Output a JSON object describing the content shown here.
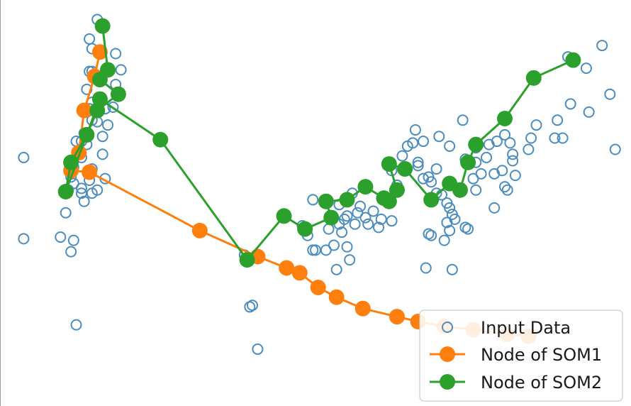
{
  "chart_data": {
    "type": "scatter",
    "xlim": [
      -1.2,
      1.2
    ],
    "ylim": [
      -1.4,
      1.1
    ],
    "grid": false,
    "legend_position": "lower-right",
    "legend": {
      "input_label": "Input Data",
      "som1_label": "Node of SOM1",
      "som2_label": "Node of SOM2"
    },
    "colors": {
      "input": "#4c8dbf",
      "som1": "#ff7f0e",
      "som2": "#2ca02c",
      "axis": "#9a9a9a"
    },
    "series": [
      {
        "name": "Input Data",
        "kind": "points",
        "points": [
          [
            -0.83,
            0.98
          ],
          [
            -0.86,
            0.86
          ],
          [
            -0.85,
            0.8
          ],
          [
            -0.86,
            0.66
          ],
          [
            -0.85,
            0.66
          ],
          [
            -0.79,
            0.66
          ],
          [
            -0.74,
            0.67
          ],
          [
            -0.76,
            0.58
          ],
          [
            -0.87,
            0.55
          ],
          [
            -0.85,
            0.47
          ],
          [
            -0.86,
            0.43
          ],
          [
            -0.8,
            0.43
          ],
          [
            -0.77,
            0.44
          ],
          [
            -0.85,
            0.36
          ],
          [
            -0.83,
            0.35
          ],
          [
            -0.79,
            0.33
          ],
          [
            -0.88,
            0.28
          ],
          [
            -0.87,
            0.26
          ],
          [
            -0.81,
            0.26
          ],
          [
            -0.91,
            0.23
          ],
          [
            -0.89,
            0.23
          ],
          [
            -0.87,
            0.21
          ],
          [
            -0.9,
            0.17
          ],
          [
            -0.89,
            0.13
          ],
          [
            -0.81,
            0.15
          ],
          [
            -0.92,
            0.07
          ],
          [
            -0.85,
            0.06
          ],
          [
            -0.93,
            0.01
          ],
          [
            -0.8,
            0.0
          ],
          [
            -0.86,
            -0.01
          ],
          [
            -0.92,
            -0.03
          ],
          [
            -0.89,
            -0.06
          ],
          [
            -0.94,
            -0.07
          ],
          [
            -0.83,
            -0.07
          ],
          [
            -0.89,
            -0.09
          ],
          [
            -0.85,
            -0.09
          ],
          [
            -0.88,
            -0.14
          ],
          [
            -0.95,
            -0.21
          ],
          [
            -0.97,
            -0.36
          ],
          [
            -0.92,
            -0.38
          ],
          [
            -0.93,
            -0.45
          ],
          [
            -0.91,
            -0.9
          ],
          [
            -1.11,
            0.13
          ],
          [
            -1.11,
            -0.37
          ],
          [
            -0.76,
            0.77
          ],
          [
            -0.27,
            -0.47
          ],
          [
            -0.24,
            -0.78
          ],
          [
            -0.25,
            -0.79
          ],
          [
            -0.22,
            -1.05
          ],
          [
            -0.05,
            -0.29
          ],
          [
            -0.01,
            -0.13
          ],
          [
            -0.03,
            -0.35
          ],
          [
            -0.01,
            -0.44
          ],
          [
            0.0,
            -0.44
          ],
          [
            0.04,
            -0.44
          ],
          [
            0.07,
            -0.41
          ],
          [
            0.05,
            -0.31
          ],
          [
            0.08,
            -0.56
          ],
          [
            0.12,
            -0.23
          ],
          [
            0.09,
            -0.16
          ],
          [
            0.12,
            -0.12
          ],
          [
            0.14,
            -0.09
          ],
          [
            0.11,
            -0.25
          ],
          [
            0.17,
            -0.17
          ],
          [
            0.09,
            -0.28
          ],
          [
            0.1,
            -0.33
          ],
          [
            0.15,
            -0.28
          ],
          [
            0.19,
            -0.24
          ],
          [
            0.12,
            -0.42
          ],
          [
            0.13,
            -0.5
          ],
          [
            0.16,
            -0.21
          ],
          [
            0.22,
            -0.2
          ],
          [
            0.2,
            -0.28
          ],
          [
            0.24,
            -0.3
          ],
          [
            0.25,
            -0.25
          ],
          [
            0.29,
            -0.26
          ],
          [
            0.27,
            -0.14
          ],
          [
            0.31,
            -0.04
          ],
          [
            0.29,
            0.05
          ],
          [
            0.33,
            0.14
          ],
          [
            0.35,
            0.2
          ],
          [
            0.37,
            0.22
          ],
          [
            0.38,
            0.3
          ],
          [
            0.41,
            0.23
          ],
          [
            0.39,
            0.08
          ],
          [
            0.39,
            0.1
          ],
          [
            0.41,
            0.0
          ],
          [
            0.43,
            0.01
          ],
          [
            0.46,
            0.06
          ],
          [
            0.44,
            -0.02
          ],
          [
            0.46,
            -0.09
          ],
          [
            0.48,
            -0.1
          ],
          [
            0.5,
            -0.15
          ],
          [
            0.51,
            -0.18
          ],
          [
            0.52,
            -0.22
          ],
          [
            0.5,
            -0.27
          ],
          [
            0.51,
            -0.32
          ],
          [
            0.53,
            -0.25
          ],
          [
            0.44,
            -0.35
          ],
          [
            0.49,
            -0.38
          ],
          [
            0.47,
            0.26
          ],
          [
            0.51,
            0.2
          ],
          [
            0.56,
            0.36
          ],
          [
            0.61,
            0.19
          ],
          [
            0.65,
            0.13
          ],
          [
            0.66,
            0.21
          ],
          [
            0.69,
            0.23
          ],
          [
            0.72,
            0.27
          ],
          [
            0.74,
            0.22
          ],
          [
            0.75,
            0.15
          ],
          [
            0.76,
            0.02
          ],
          [
            0.81,
            0.18
          ],
          [
            0.82,
            0.25
          ],
          [
            0.84,
            0.33
          ],
          [
            0.91,
            0.25
          ],
          [
            0.94,
            0.25
          ],
          [
            0.97,
            0.46
          ],
          [
            0.92,
            0.36
          ],
          [
            0.75,
            0.11
          ],
          [
            0.71,
            0.05
          ],
          [
            0.68,
            0.03
          ],
          [
            0.72,
            -0.05
          ],
          [
            0.73,
            -0.07
          ],
          [
            0.61,
            -0.07
          ],
          [
            0.68,
            -0.18
          ],
          [
            0.57,
            -0.3
          ],
          [
            0.58,
            -0.31
          ],
          [
            0.43,
            -0.34
          ],
          [
            0.42,
            -0.55
          ],
          [
            0.52,
            -0.56
          ],
          [
            0.96,
            0.75
          ],
          [
            1.03,
            0.68
          ],
          [
            1.09,
            0.82
          ],
          [
            1.12,
            0.52
          ],
          [
            1.14,
            0.18
          ],
          [
            1.04,
            0.41
          ],
          [
            0.61,
            0.1
          ],
          [
            0.57,
            0.12
          ],
          [
            0.63,
            0.03
          ],
          [
            0.6,
            0.0
          ]
        ]
      },
      {
        "name": "Node of SOM1",
        "kind": "line",
        "points": [
          [
            -0.82,
            0.78
          ],
          [
            -0.84,
            0.63
          ],
          [
            -0.88,
            0.42
          ],
          [
            -0.9,
            0.16
          ],
          [
            -0.93,
            0.05
          ],
          [
            -0.86,
            0.04
          ],
          [
            -0.44,
            -0.32
          ],
          [
            -0.22,
            -0.48
          ],
          [
            -0.11,
            -0.55
          ],
          [
            -0.06,
            -0.58
          ],
          [
            0.01,
            -0.67
          ],
          [
            0.08,
            -0.73
          ],
          [
            0.18,
            -0.8
          ],
          [
            0.31,
            -0.85
          ],
          [
            0.39,
            -0.88
          ],
          [
            0.49,
            -0.91
          ],
          [
            0.6,
            -0.93
          ],
          [
            0.73,
            -0.96
          ],
          [
            0.81,
            -0.97
          ]
        ]
      },
      {
        "name": "Node of SOM2",
        "kind": "line",
        "points": [
          [
            -0.81,
            0.94
          ],
          [
            -0.79,
            0.67
          ],
          [
            -0.82,
            0.61
          ],
          [
            -0.75,
            0.52
          ],
          [
            -0.83,
            0.42
          ],
          [
            -0.87,
            0.27
          ],
          [
            -0.93,
            0.1
          ],
          [
            -0.95,
            -0.08
          ],
          [
            -0.82,
            0.49
          ],
          [
            -0.59,
            0.24
          ],
          [
            -0.26,
            -0.5
          ],
          [
            -0.12,
            -0.23
          ],
          [
            -0.04,
            -0.31
          ],
          [
            0.06,
            -0.24
          ],
          [
            0.04,
            -0.14
          ],
          [
            0.12,
            -0.13
          ],
          [
            0.19,
            -0.05
          ],
          [
            0.26,
            -0.12
          ],
          [
            0.28,
            -0.14
          ],
          [
            0.31,
            -0.07
          ],
          [
            0.28,
            0.09
          ],
          [
            0.34,
            0.06
          ],
          [
            0.44,
            -0.13
          ],
          [
            0.51,
            -0.03
          ],
          [
            0.55,
            -0.07
          ],
          [
            0.58,
            0.1
          ],
          [
            0.61,
            0.21
          ],
          [
            0.72,
            0.37
          ],
          [
            0.83,
            0.62
          ],
          [
            0.98,
            0.73
          ]
        ]
      }
    ]
  }
}
